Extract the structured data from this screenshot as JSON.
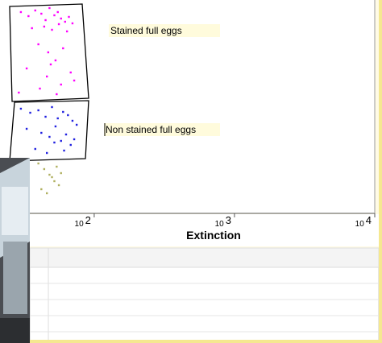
{
  "chart_data": {
    "type": "scatter",
    "xlabel": "Extinction",
    "log_x": true,
    "xlim": [
      21.3,
      10000
    ],
    "ylim": [
      0,
      265
    ],
    "xticks": [
      {
        "value": 100,
        "label": "10",
        "exponent": "2"
      },
      {
        "value": 1000,
        "label": "10",
        "exponent": "3"
      },
      {
        "value": 10000,
        "label": "10",
        "exponent": "4"
      }
    ],
    "annotations": [
      "Stained full eggs",
      "Non stained full eggs"
    ],
    "series": [
      {
        "color": "#ff00ff",
        "x": [
          30,
          34,
          38,
          42,
          45,
          48,
          52,
          55,
          58,
          62,
          66,
          70,
          36,
          44,
          50,
          56,
          64,
          40,
          47,
          53,
          60,
          33,
          46,
          58,
          68,
          29,
          41,
          54,
          72,
          49
        ],
        "values": [
          250,
          245,
          252,
          248,
          240,
          255,
          246,
          250,
          242,
          238,
          244,
          236,
          230,
          232,
          228,
          235,
          226,
          210,
          200,
          190,
          205,
          180,
          170,
          160,
          175,
          150,
          155,
          148,
          165,
          185
        ]
      },
      {
        "color": "#2020e0",
        "x": [
          30,
          35,
          40,
          45,
          50,
          55,
          60,
          65,
          70,
          75,
          33,
          42,
          48,
          53,
          58,
          63,
          68,
          38,
          46,
          52,
          61,
          72
        ],
        "values": [
          130,
          125,
          128,
          120,
          132,
          118,
          126,
          122,
          115,
          110,
          105,
          100,
          95,
          108,
          90,
          98,
          85,
          80,
          75,
          88,
          78,
          92
        ]
      },
      {
        "color": "#b0b060",
        "x": [
          40,
          44,
          48,
          52,
          56,
          42,
          50,
          46,
          54,
          58
        ],
        "values": [
          62,
          55,
          48,
          40,
          35,
          30,
          45,
          25,
          58,
          50
        ]
      }
    ]
  }
}
